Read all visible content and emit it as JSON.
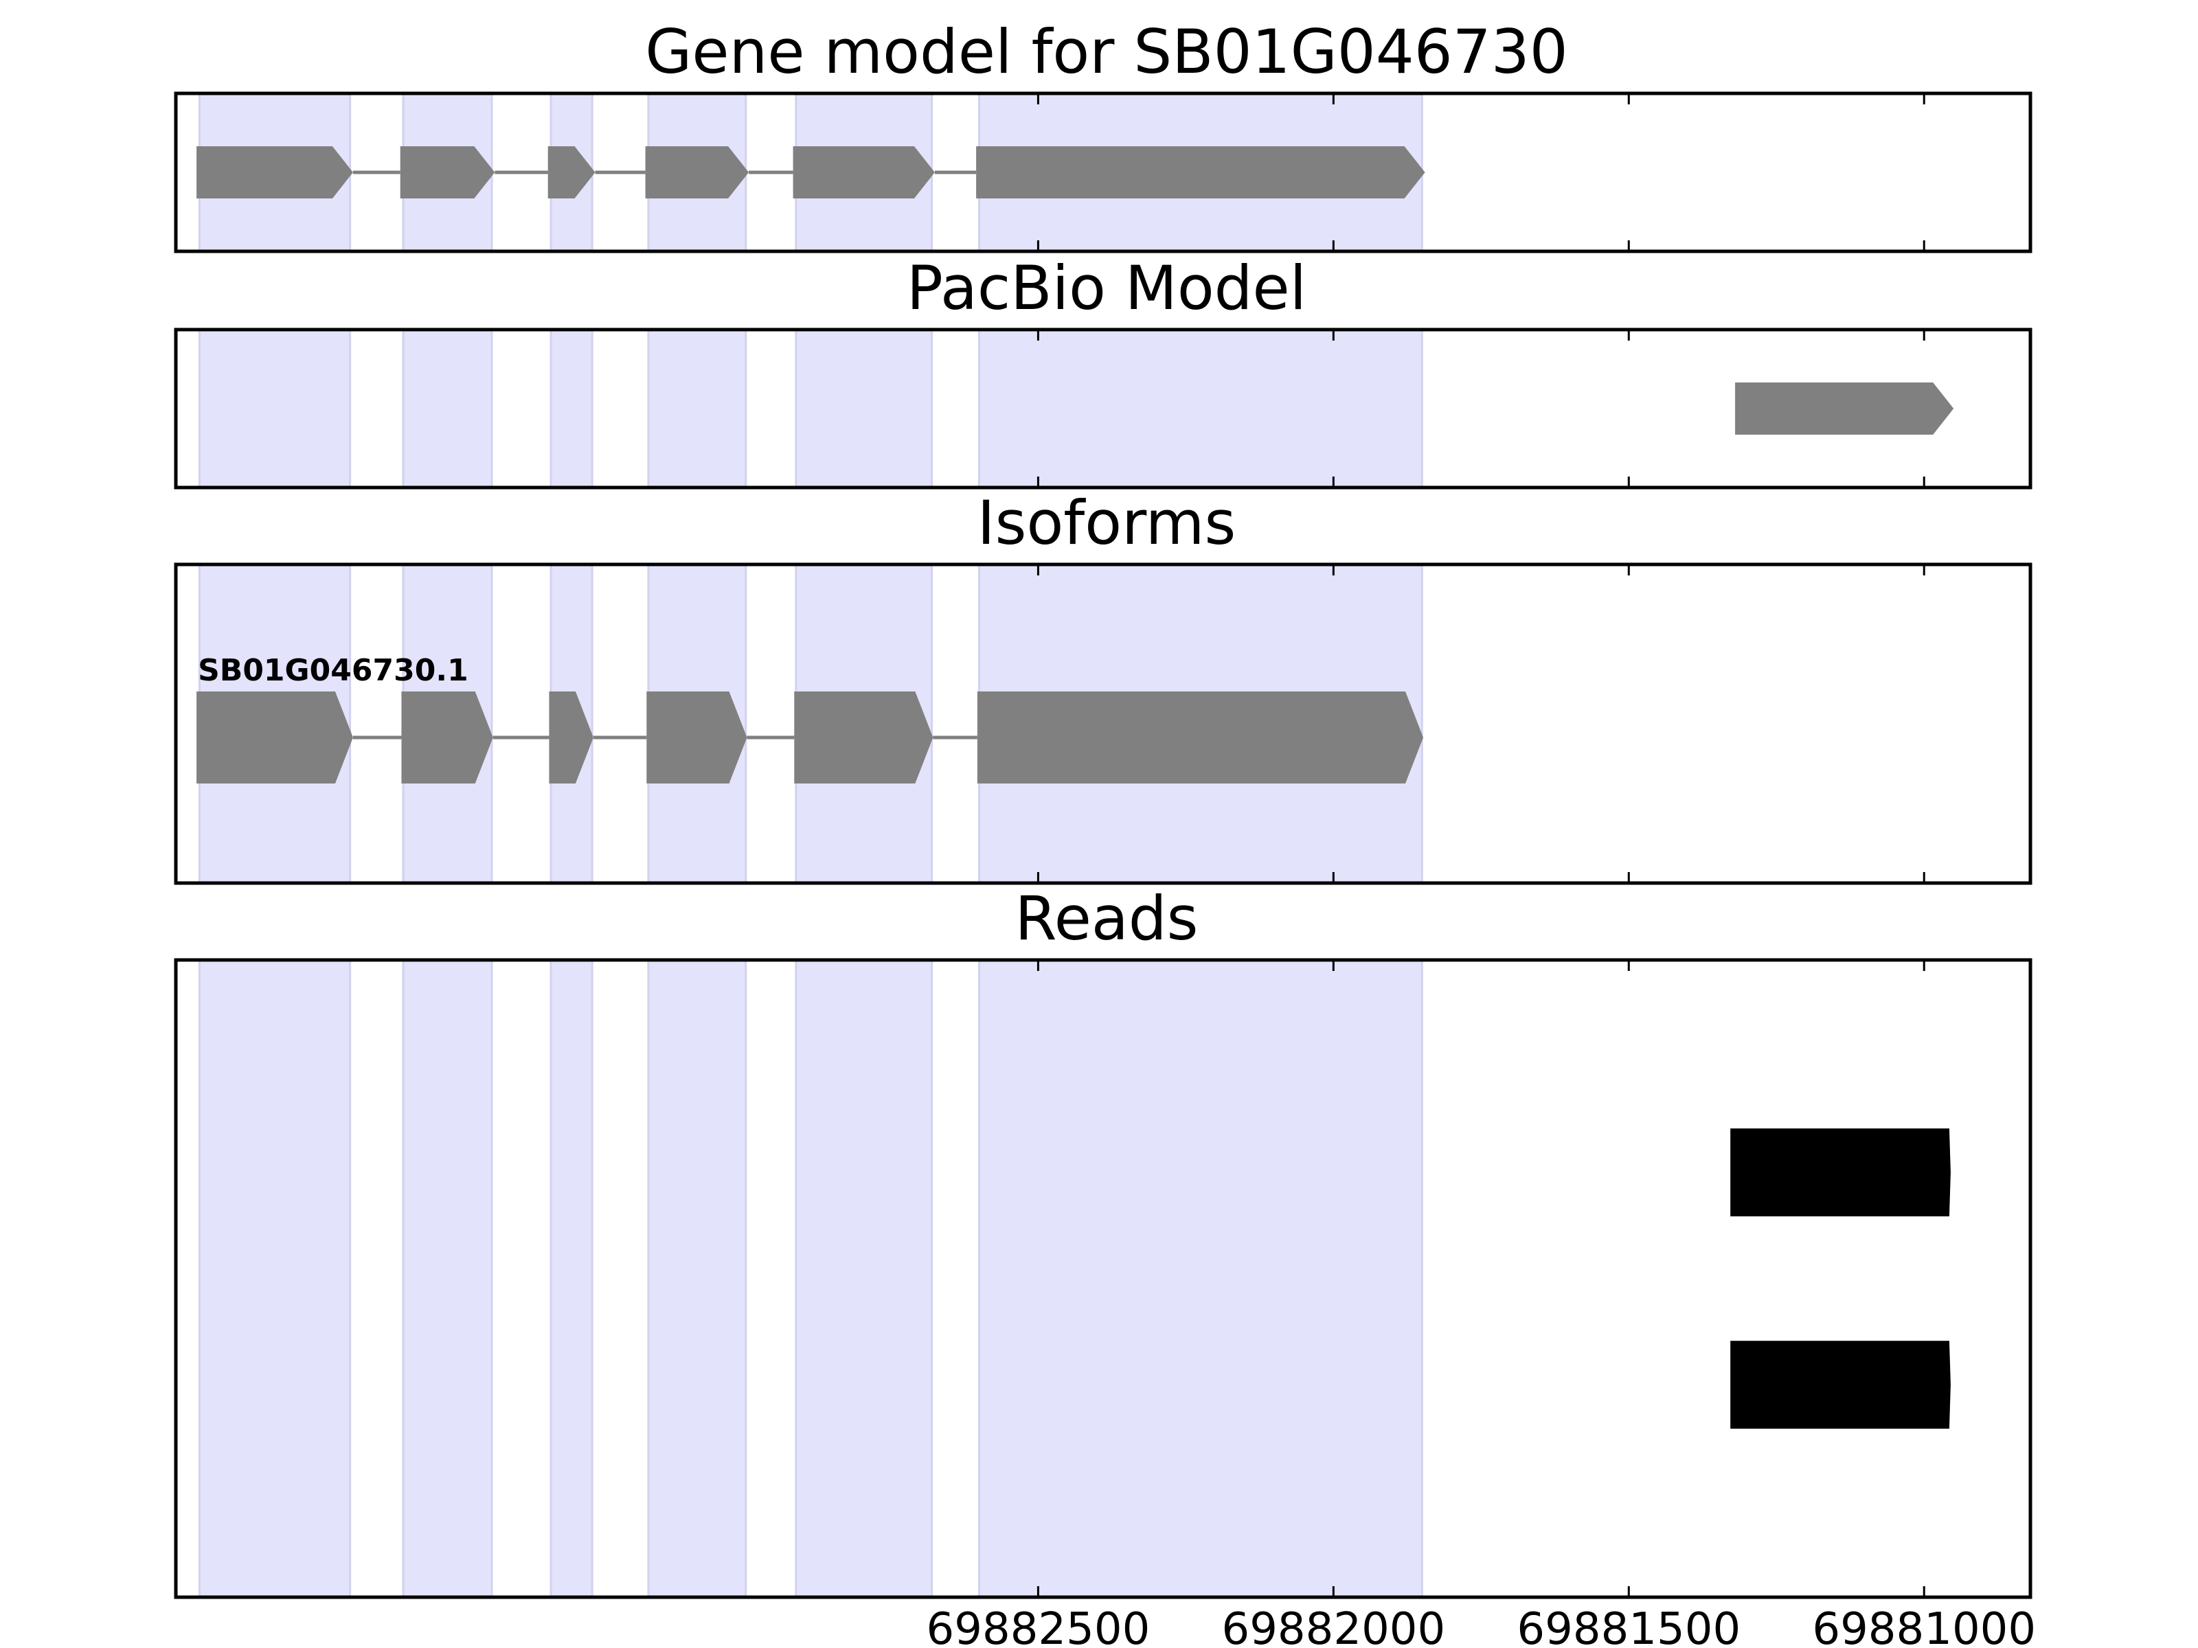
{
  "chart_data": {
    "type": "gene-model",
    "title": "Gene model for SB01G046730",
    "x_axis": {
      "reversed": true,
      "range": [
        69883960,
        69880820
      ],
      "ticks": [
        69882500,
        69882000,
        69881500,
        69881000
      ],
      "tick_labels": [
        "69882500",
        "69882000",
        "69881500",
        "69881000"
      ]
    },
    "exon_regions": [
      {
        "start": 69883920,
        "end": 69883665
      },
      {
        "start": 69883575,
        "end": 69883425
      },
      {
        "start": 69883325,
        "end": 69883255
      },
      {
        "start": 69883160,
        "end": 69882995
      },
      {
        "start": 69882910,
        "end": 69882680
      },
      {
        "start": 69882600,
        "end": 69881850
      }
    ],
    "colors": {
      "exon_shade": "#e3e3fc",
      "exon_shade_edge": "#d2d2ee",
      "feature": "#808080",
      "intron_line": "#808080",
      "read": "#000000",
      "frame": "#000000"
    },
    "panels": [
      {
        "title": "Gene model for SB01G046730",
        "features": [
          {
            "start": 69883925,
            "end": 69883660
          },
          {
            "start": 69883580,
            "end": 69883420
          },
          {
            "start": 69883330,
            "end": 69883250
          },
          {
            "start": 69883165,
            "end": 69882990
          },
          {
            "start": 69882915,
            "end": 69882675
          },
          {
            "start": 69882605,
            "end": 69881845
          }
        ],
        "connected": true
      },
      {
        "title": "PacBio Model",
        "features": [
          {
            "start": 69881320,
            "end": 69880950
          }
        ],
        "connected": false
      },
      {
        "title": "Isoforms",
        "isoform_label": "SB01G046730.1",
        "features": [
          {
            "start": 69883925,
            "end": 69883660
          },
          {
            "start": 69883578,
            "end": 69883423
          },
          {
            "start": 69883328,
            "end": 69883253
          },
          {
            "start": 69883163,
            "end": 69882993
          },
          {
            "start": 69882913,
            "end": 69882678
          },
          {
            "start": 69882603,
            "end": 69881848
          }
        ],
        "connected": true
      },
      {
        "title": "Reads",
        "reads": [
          {
            "start": 69881328,
            "end": 69880955
          },
          {
            "start": 69881328,
            "end": 69880955
          }
        ]
      }
    ]
  }
}
